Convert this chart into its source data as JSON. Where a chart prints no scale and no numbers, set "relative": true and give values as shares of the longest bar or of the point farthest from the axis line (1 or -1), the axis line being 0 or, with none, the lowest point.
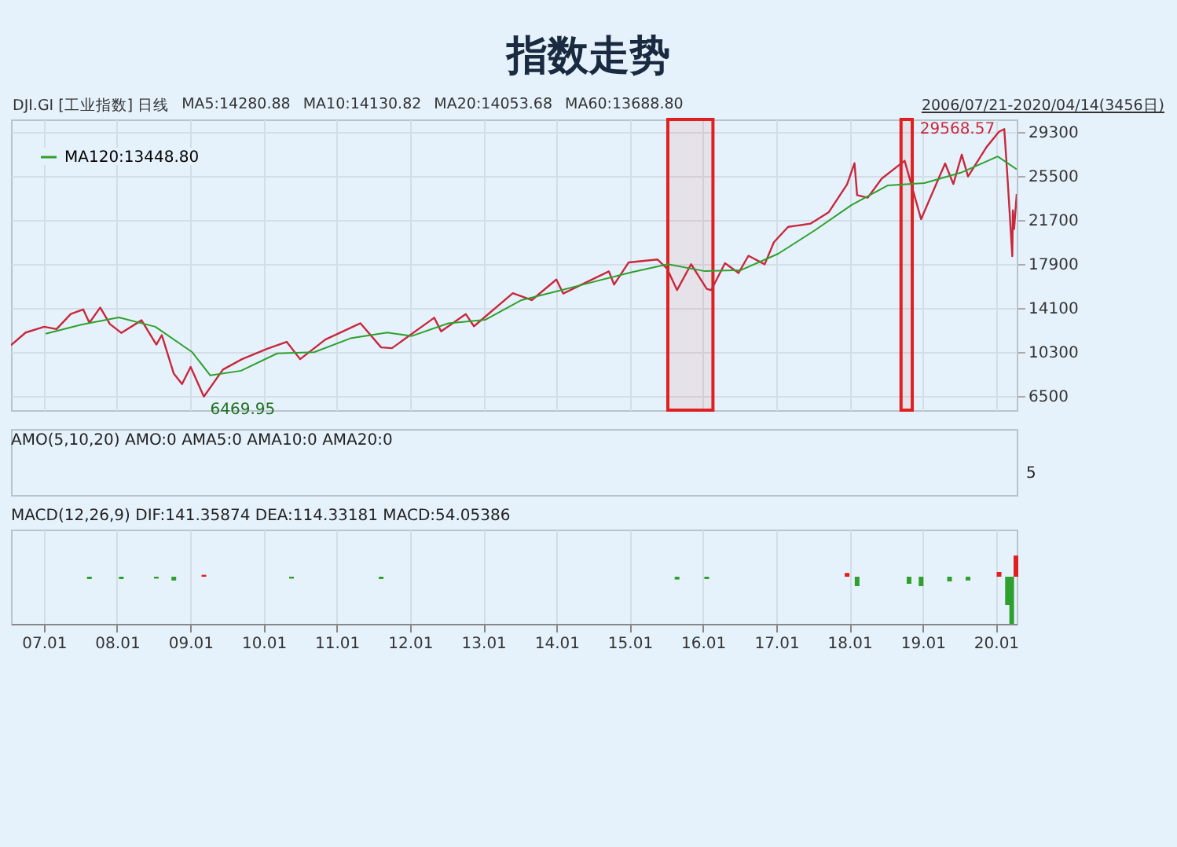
{
  "chart_data": [
    {
      "type": "line",
      "title": "指数走势",
      "annotations": [
        "DJI.GI [工业指数] 日线",
        "MA5:14280.88",
        "MA10:14130.82",
        "MA20:14053.68",
        "MA60:13688.80",
        "2006/07/21-2020/04/14(3456日)",
        {
          "text": "6469.95",
          "x": "2009-03-09",
          "y": 6469.95
        },
        {
          "text": "29568.57",
          "x": "2020-02-12",
          "y": 29568.57
        }
      ],
      "xlim": [
        "2006-07-21",
        "2020-04-14"
      ],
      "xticks": [
        {
          "value": "2007-01-01",
          "label": null
        },
        {
          "value": "2008-01-01",
          "label": null
        },
        {
          "value": "2009-01-01",
          "label": null
        },
        {
          "value": "2010-01-01",
          "label": null
        },
        {
          "value": "2011-01-01",
          "label": null
        },
        {
          "value": "2012-01-01",
          "label": null
        },
        {
          "value": "2013-01-01",
          "label": null
        },
        {
          "value": "2014-01-01",
          "label": null
        },
        {
          "value": "2015-01-01",
          "label": null
        },
        {
          "value": "2016-01-01",
          "label": null
        },
        {
          "value": "2017-01-01",
          "label": null
        },
        {
          "value": "2018-01-01",
          "label": null
        },
        {
          "value": "2019-01-01",
          "label": null
        },
        {
          "value": "2020-01-01",
          "label": null
        }
      ],
      "ylim": [
        5300,
        30400
      ],
      "yticks": [
        6500,
        10300,
        14100,
        17900,
        21700,
        25500,
        29300
      ],
      "tick_labels": "y",
      "grid": true,
      "legend": "top left",
      "bands": [
        {
          "axis": "x",
          "from": "2015-07-10",
          "to": "2016-02-20",
          "color": "#e02020"
        },
        {
          "axis": "x",
          "from": "2018-09-15",
          "to": "2018-11-10",
          "color": "#e02020"
        }
      ],
      "series": [
        {
          "color": "#c8283c",
          "x": [
            "2006-07-21",
            "2006-10-02",
            "2007-01-03",
            "2007-03-05",
            "2007-05-15",
            "2007-07-16",
            "2007-08-16",
            "2007-10-09",
            "2007-11-26",
            "2008-01-22",
            "2008-05-02",
            "2008-07-15",
            "2008-08-11",
            "2008-10-10",
            "2008-11-20",
            "2009-01-02",
            "2009-03-09",
            "2009-06-12",
            "2009-09-15",
            "2010-01-19",
            "2010-04-26",
            "2010-07-02",
            "2010-11-05",
            "2011-04-29",
            "2011-08-10",
            "2011-10-03",
            "2012-05-01",
            "2012-06-04",
            "2012-10-05",
            "2012-11-15",
            "2013-05-28",
            "2013-08-30",
            "2013-12-31",
            "2014-02-03",
            "2014-09-19",
            "2014-10-15",
            "2014-12-26",
            "2015-05-19",
            "2015-07-07",
            "2015-08-25",
            "2015-11-03",
            "2016-01-20",
            "2016-02-11",
            "2016-04-20",
            "2016-06-27",
            "2016-08-15",
            "2016-11-04",
            "2016-12-20",
            "2017-03-01",
            "2017-06-20",
            "2017-09-20",
            "2017-12-20",
            "2018-01-26",
            "2018-02-08",
            "2018-04-02",
            "2018-06-11",
            "2018-10-03",
            "2018-12-24",
            "2019-04-23",
            "2019-06-03",
            "2019-07-15",
            "2019-08-15",
            "2019-11-15",
            "2020-01-17",
            "2020-02-12",
            "2020-02-28",
            "2020-03-23",
            "2020-03-26",
            "2020-04-01",
            "2020-04-14"
          ],
          "values": [
            10900,
            12000,
            12500,
            12300,
            13600,
            14000,
            12850,
            14160,
            12740,
            11970,
            13060,
            10960,
            11780,
            8450,
            7550,
            9030,
            6469.95,
            8800,
            9700,
            10600,
            11200,
            9700,
            11400,
            12800,
            10720,
            10650,
            13280,
            12100,
            13600,
            12540,
            15400,
            14800,
            16580,
            15370,
            17280,
            16140,
            18050,
            18310,
            17500,
            15670,
            17900,
            15770,
            15660,
            17990,
            17140,
            18630,
            17890,
            19800,
            21120,
            21400,
            22400,
            24800,
            26620,
            23860,
            23640,
            25300,
            26830,
            21790,
            26600,
            24820,
            27360,
            25480,
            28000,
            29350,
            29568.57,
            25400,
            18590,
            22550,
            20940,
            23950
          ]
        },
        {
          "name": "MA120:13448.80",
          "color": "#2ea02e",
          "x": [
            "2007-01-10",
            "2007-07-10",
            "2008-01-10",
            "2008-07-10",
            "2009-01-10",
            "2009-04-10",
            "2009-09-10",
            "2010-03-10",
            "2010-09-10",
            "2011-03-10",
            "2011-09-10",
            "2012-01-10",
            "2012-07-10",
            "2013-01-10",
            "2013-07-10",
            "2014-01-10",
            "2014-07-10",
            "2015-01-10",
            "2015-07-10",
            "2016-01-10",
            "2016-07-10",
            "2017-01-10",
            "2017-07-10",
            "2018-01-10",
            "2018-07-10",
            "2019-01-10",
            "2019-07-10",
            "2020-01-10",
            "2020-04-14"
          ],
          "values": [
            11900,
            12700,
            13300,
            12500,
            10300,
            8300,
            8700,
            10200,
            10300,
            11500,
            12000,
            11700,
            12800,
            13100,
            14800,
            15600,
            16400,
            17200,
            17900,
            17300,
            17400,
            18800,
            20800,
            23000,
            24700,
            24900,
            25800,
            27200,
            26100
          ]
        }
      ]
    },
    {
      "type": "other",
      "title": "AMO(5,10,20) AMO:0 AMA5:0 AMA10:0 AMA20:0",
      "annotations": [
        "5"
      ]
    },
    {
      "type": "bar",
      "relative": true,
      "grid": "x",
      "title": "MACD(12,26,9) DIF:141.35874 DEA:114.33181 MACD:54.05386",
      "tick_labels": "x",
      "xlim": [
        "2006-07-21",
        "2020-04-14"
      ],
      "xticks": [
        {
          "value": "2007-01-01",
          "label": "07.01"
        },
        {
          "value": "2008-01-01",
          "label": "08.01"
        },
        {
          "value": "2009-01-01",
          "label": "09.01"
        },
        {
          "value": "2010-01-01",
          "label": "10.01"
        },
        {
          "value": "2011-01-01",
          "label": "11.01"
        },
        {
          "value": "2012-01-01",
          "label": "12.01"
        },
        {
          "value": "2013-01-01",
          "label": "13.01"
        },
        {
          "value": "2014-01-01",
          "label": "14.01"
        },
        {
          "value": "2015-01-01",
          "label": "15.01"
        },
        {
          "value": "2016-01-01",
          "label": "16.01"
        },
        {
          "value": "2017-01-01",
          "label": "17.01"
        },
        {
          "value": "2018-01-01",
          "label": "18.01"
        },
        {
          "value": "2019-01-01",
          "label": "19.01"
        },
        {
          "value": "2020-01-01",
          "label": "20.01"
        }
      ],
      "x": [
        "2007-08-16",
        "2008-01-22",
        "2008-07-15",
        "2008-10-10",
        "2009-03-09",
        "2010-05-20",
        "2011-08-10",
        "2015-08-25",
        "2016-01-20",
        "2017-12-20",
        "2018-02-08",
        "2018-10-25",
        "2018-12-24",
        "2019-05-15",
        "2019-08-15",
        "2020-01-17",
        "2020-02-28",
        "2020-03-20",
        "2020-04-10"
      ],
      "values": [
        -0.05,
        -0.05,
        -0.04,
        -0.08,
        0.04,
        -0.04,
        -0.05,
        -0.06,
        -0.05,
        0.08,
        -0.2,
        -0.15,
        -0.2,
        -0.1,
        -0.08,
        0.1,
        -0.6,
        -1,
        0.45
      ],
      "colors": [
        "#2ea02e",
        "#2ea02e",
        "#2ea02e",
        "#2ea02e",
        "#e02020",
        "#2ea02e",
        "#2ea02e",
        "#2ea02e",
        "#2ea02e",
        "#e02020",
        "#2ea02e",
        "#2ea02e",
        "#2ea02e",
        "#2ea02e",
        "#2ea02e",
        "#e02020",
        "#2ea02e",
        "#2ea02e",
        "#e02020"
      ]
    }
  ]
}
